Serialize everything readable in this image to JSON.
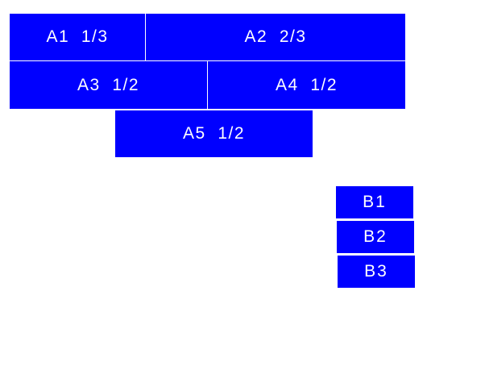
{
  "colors": {
    "box": "#0000ff",
    "text": "#ffffff"
  },
  "group_a": [
    {
      "label": "A1  1/3"
    },
    {
      "label": "A2  2/3"
    },
    {
      "label": "A3  1/2"
    },
    {
      "label": "A4  1/2"
    },
    {
      "label": "A5  1/2"
    }
  ],
  "group_b": [
    {
      "label": "B1"
    },
    {
      "label": "B2"
    },
    {
      "label": "B3"
    }
  ]
}
